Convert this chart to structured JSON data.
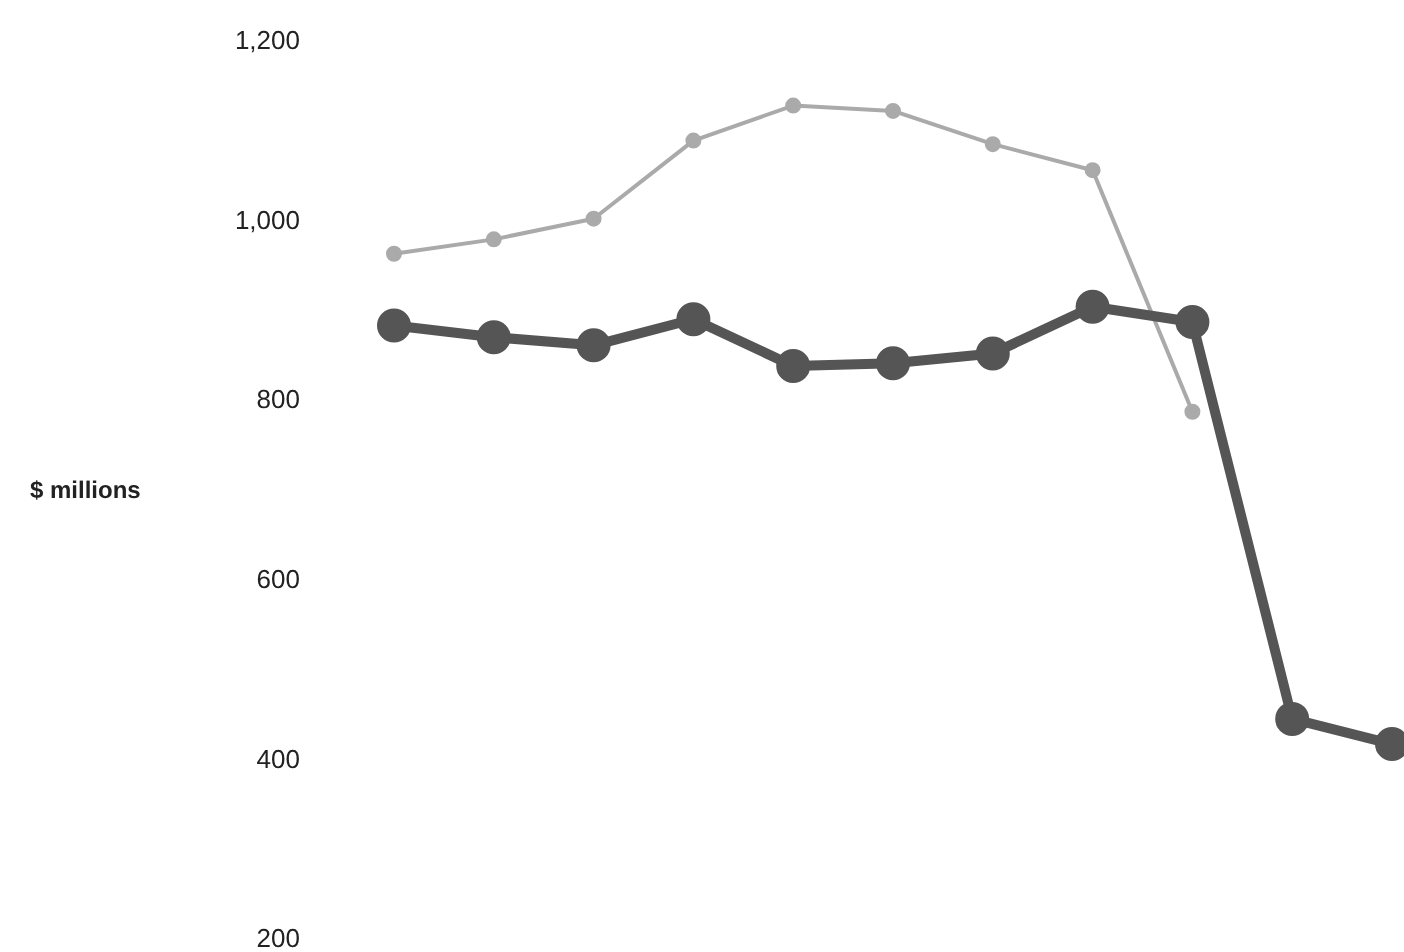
{
  "chart_data": {
    "type": "line",
    "ylabel": "$ millions",
    "categories": [
      null,
      null,
      null,
      null,
      null,
      null,
      null,
      null,
      null,
      null,
      null
    ],
    "series": [
      {
        "color": "#aaaaaa",
        "values": [
          962,
          978,
          1001,
          1088,
          1127,
          1121,
          1084,
          1055,
          786,
          null,
          null
        ]
      },
      {
        "color": "#555555",
        "values": [
          882,
          869,
          860,
          889,
          837,
          840,
          851,
          903,
          886,
          444,
          416
        ]
      }
    ],
    "ylim": [
      200,
      1200
    ],
    "yticks": [
      200,
      400,
      600,
      800,
      {
        "value": 1000,
        "label": "1,000"
      },
      {
        "value": 1200,
        "label": "1,200"
      }
    ],
    "tick_labels": "y",
    "grid": false,
    "legend": false,
    "marker": "circle"
  }
}
